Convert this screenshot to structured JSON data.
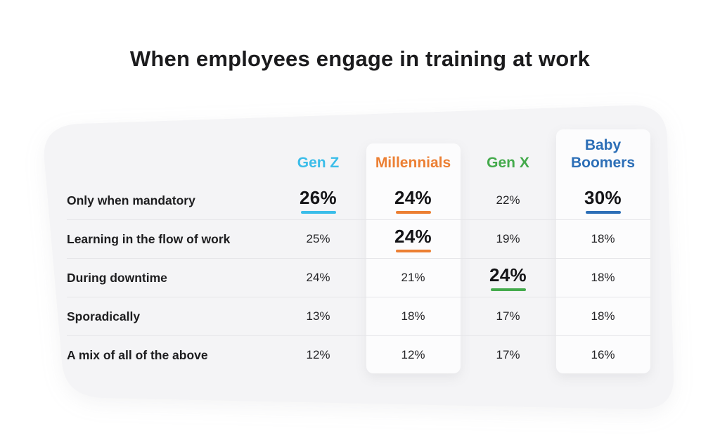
{
  "title": "When employees engage in training at work",
  "table": {
    "columns": [
      {
        "id": "gen-z",
        "label": "Gen Z",
        "color": "#3bbde9"
      },
      {
        "id": "millennials",
        "label": "Millennials",
        "color": "#ec7f33"
      },
      {
        "id": "gen-x",
        "label": "Gen X",
        "color": "#44aa4c"
      },
      {
        "id": "baby-boomers",
        "label": "Baby Boomers",
        "color": "#2d6fb7"
      }
    ],
    "rows": [
      {
        "label": "Only when mandatory",
        "values": [
          "26%",
          "24%",
          "22%",
          "30%"
        ],
        "highlighted": [
          true,
          true,
          false,
          true
        ]
      },
      {
        "label": "Learning in the flow of work",
        "values": [
          "25%",
          "24%",
          "19%",
          "18%"
        ],
        "highlighted": [
          false,
          true,
          false,
          false
        ]
      },
      {
        "label": "During downtime",
        "values": [
          "24%",
          "21%",
          "24%",
          "18%"
        ],
        "highlighted": [
          false,
          false,
          true,
          false
        ]
      },
      {
        "label": "Sporadically",
        "values": [
          "13%",
          "18%",
          "17%",
          "18%"
        ],
        "highlighted": [
          false,
          false,
          false,
          false
        ]
      },
      {
        "label": "A mix of all of the above",
        "values": [
          "12%",
          "12%",
          "17%",
          "16%"
        ],
        "highlighted": [
          false,
          false,
          false,
          false
        ]
      }
    ]
  },
  "chart_data": {
    "type": "table",
    "title": "When employees engage in training at work",
    "categories": [
      "Only when mandatory",
      "Learning in the flow of work",
      "During downtime",
      "Sporadically",
      "A mix of all of the above"
    ],
    "series": [
      {
        "name": "Gen Z",
        "color": "#3bbde9",
        "values": [
          26,
          25,
          24,
          13,
          12
        ]
      },
      {
        "name": "Millennials",
        "color": "#ec7f33",
        "values": [
          24,
          24,
          21,
          18,
          12
        ]
      },
      {
        "name": "Gen X",
        "color": "#44aa4c",
        "values": [
          22,
          19,
          24,
          17,
          17
        ]
      },
      {
        "name": "Baby Boomers",
        "color": "#2d6fb7",
        "values": [
          30,
          18,
          18,
          18,
          16
        ]
      }
    ],
    "value_unit": "%",
    "highlighted_cells": [
      {
        "series": "Gen Z",
        "category": "Only when mandatory",
        "value": 26
      },
      {
        "series": "Millennials",
        "category": "Only when mandatory",
        "value": 24
      },
      {
        "series": "Baby Boomers",
        "category": "Only when mandatory",
        "value": 30
      },
      {
        "series": "Millennials",
        "category": "Learning in the flow of work",
        "value": 24
      },
      {
        "series": "Gen X",
        "category": "During downtime",
        "value": 24
      }
    ],
    "layout": {
      "header_position": "top",
      "row_dividers": true,
      "striped_columns": [
        "Millennials",
        "Baby Boomers"
      ]
    }
  },
  "colors": {
    "card_background": "#f4f4f6",
    "column_stripe": "#fcfcfd",
    "divider": "#e6e6e9",
    "text_primary": "#1b1b1d"
  }
}
